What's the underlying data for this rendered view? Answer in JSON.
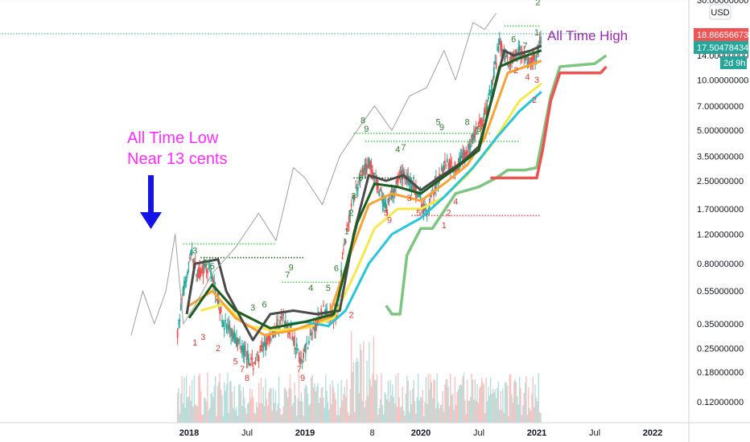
{
  "chart_data": {
    "type": "candlestick",
    "scale": "log",
    "currency": "USD",
    "ylim": [
      0.09,
      30
    ],
    "y_ticks": [
      "30.00000000",
      "14.00000000",
      "10.00000000",
      "7.00000000",
      "5.00000000",
      "3.50000000",
      "2.50000000",
      "1.70000000",
      "1.20000000",
      "0.80000000",
      "0.55000000",
      "0.35000000",
      "0.25000000",
      "0.18000000",
      "0.12000000"
    ],
    "x_ticks": [
      "2018",
      "Jul",
      "2019",
      "8",
      "2020",
      "Jul",
      "2021",
      "Jul",
      "2022"
    ],
    "price_labels": [
      {
        "text": "18.86656673",
        "color": "#f05454"
      },
      {
        "text": "17.50478434",
        "color": "#26a69a"
      },
      {
        "text": "2d 9h",
        "color": "#26a69a"
      }
    ],
    "annotations": [
      {
        "text": "All Time Low",
        "color": "#ff2cff"
      },
      {
        "text": "Near 13 cents",
        "color": "#ff2cff"
      },
      {
        "text": "All Time High",
        "color": "#9c27b0"
      }
    ],
    "key_levels": {
      "all_time_low": 0.13,
      "all_time_high": 18.86656673,
      "last_price": 17.50478434
    },
    "waypoints": [
      {
        "t": 2017.9,
        "v": 0.3
      },
      {
        "t": 2017.95,
        "v": 0.55
      },
      {
        "t": 2018.02,
        "v": 0.95
      },
      {
        "t": 2018.07,
        "v": 0.7
      },
      {
        "t": 2018.18,
        "v": 0.75
      },
      {
        "t": 2018.3,
        "v": 0.35
      },
      {
        "t": 2018.45,
        "v": 0.26
      },
      {
        "t": 2018.55,
        "v": 0.2
      },
      {
        "t": 2018.68,
        "v": 0.28
      },
      {
        "t": 2018.8,
        "v": 0.38
      },
      {
        "t": 2018.9,
        "v": 0.3
      },
      {
        "t": 2018.96,
        "v": 0.21
      },
      {
        "t": 2019.05,
        "v": 0.3
      },
      {
        "t": 2019.15,
        "v": 0.42
      },
      {
        "t": 2019.28,
        "v": 0.4
      },
      {
        "t": 2019.33,
        "v": 0.95
      },
      {
        "t": 2019.4,
        "v": 1.8
      },
      {
        "t": 2019.47,
        "v": 2.6
      },
      {
        "t": 2019.55,
        "v": 3.2
      },
      {
        "t": 2019.62,
        "v": 2.4
      },
      {
        "t": 2019.7,
        "v": 1.7
      },
      {
        "t": 2019.77,
        "v": 2.3
      },
      {
        "t": 2019.85,
        "v": 2.8
      },
      {
        "t": 2019.95,
        "v": 2.2
      },
      {
        "t": 2020.05,
        "v": 1.6
      },
      {
        "t": 2020.12,
        "v": 2.3
      },
      {
        "t": 2020.22,
        "v": 3.3
      },
      {
        "t": 2020.3,
        "v": 3.0
      },
      {
        "t": 2020.4,
        "v": 3.8
      },
      {
        "t": 2020.48,
        "v": 5.0
      },
      {
        "t": 2020.55,
        "v": 6.0
      },
      {
        "t": 2020.62,
        "v": 10.0
      },
      {
        "t": 2020.68,
        "v": 16.5
      },
      {
        "t": 2020.75,
        "v": 13.0
      },
      {
        "t": 2020.85,
        "v": 15.0
      },
      {
        "t": 2020.92,
        "v": 12.5
      },
      {
        "t": 2021.0,
        "v": 14.0
      },
      {
        "t": 2021.04,
        "v": 17.5
      }
    ],
    "series": [
      {
        "name": "",
        "color": "#f7e84a",
        "values": [
          {
            "t": 2018.1,
            "v": 0.42
          },
          {
            "t": 2018.3,
            "v": 0.46
          },
          {
            "t": 2018.5,
            "v": 0.34
          },
          {
            "t": 2018.75,
            "v": 0.32
          },
          {
            "t": 2019.0,
            "v": 0.33
          },
          {
            "t": 2019.25,
            "v": 0.38
          },
          {
            "t": 2019.45,
            "v": 0.75
          },
          {
            "t": 2019.6,
            "v": 1.3
          },
          {
            "t": 2019.8,
            "v": 1.7
          },
          {
            "t": 2020.0,
            "v": 1.7
          },
          {
            "t": 2020.2,
            "v": 2.0
          },
          {
            "t": 2020.4,
            "v": 2.7
          },
          {
            "t": 2020.6,
            "v": 4.0
          },
          {
            "t": 2020.85,
            "v": 7.5
          },
          {
            "t": 2021.04,
            "v": 9.5
          }
        ]
      },
      {
        "name": "",
        "color": "#f7a233",
        "values": [
          {
            "t": 2018.0,
            "v": 0.45
          },
          {
            "t": 2018.2,
            "v": 0.55
          },
          {
            "t": 2018.4,
            "v": 0.38
          },
          {
            "t": 2018.65,
            "v": 0.3
          },
          {
            "t": 2018.9,
            "v": 0.32
          },
          {
            "t": 2019.2,
            "v": 0.38
          },
          {
            "t": 2019.4,
            "v": 0.95
          },
          {
            "t": 2019.55,
            "v": 1.8
          },
          {
            "t": 2019.75,
            "v": 2.1
          },
          {
            "t": 2020.0,
            "v": 1.9
          },
          {
            "t": 2020.2,
            "v": 2.4
          },
          {
            "t": 2020.4,
            "v": 3.1
          },
          {
            "t": 2020.55,
            "v": 4.5
          },
          {
            "t": 2020.75,
            "v": 11.0
          },
          {
            "t": 2021.04,
            "v": 13.0
          }
        ]
      },
      {
        "name": "",
        "color": "#26c6da",
        "values": [
          {
            "t": 2018.85,
            "v": 0.35
          },
          {
            "t": 2019.0,
            "v": 0.36
          },
          {
            "t": 2019.2,
            "v": 0.34
          },
          {
            "t": 2019.35,
            "v": 0.42
          },
          {
            "t": 2019.55,
            "v": 0.8
          },
          {
            "t": 2019.75,
            "v": 1.2
          },
          {
            "t": 2020.0,
            "v": 1.5
          },
          {
            "t": 2020.2,
            "v": 2.0
          },
          {
            "t": 2020.45,
            "v": 3.0
          },
          {
            "t": 2020.65,
            "v": 4.5
          },
          {
            "t": 2020.85,
            "v": 6.5
          },
          {
            "t": 2021.04,
            "v": 8.5
          }
        ]
      },
      {
        "name": "",
        "color": "#4a4a4a",
        "values": [
          {
            "t": 2017.98,
            "v": 0.4
          },
          {
            "t": 2018.05,
            "v": 0.8
          },
          {
            "t": 2018.25,
            "v": 0.85
          },
          {
            "t": 2018.32,
            "v": 0.55
          },
          {
            "t": 2018.55,
            "v": 0.28
          },
          {
            "t": 2018.7,
            "v": 0.4
          },
          {
            "t": 2018.9,
            "v": 0.42
          },
          {
            "t": 2019.1,
            "v": 0.4
          },
          {
            "t": 2019.3,
            "v": 0.42
          },
          {
            "t": 2019.42,
            "v": 1.2
          },
          {
            "t": 2019.55,
            "v": 2.7
          },
          {
            "t": 2019.7,
            "v": 2.5
          },
          {
            "t": 2019.85,
            "v": 2.7
          },
          {
            "t": 2020.0,
            "v": 2.2
          },
          {
            "t": 2020.15,
            "v": 2.6
          },
          {
            "t": 2020.35,
            "v": 3.2
          },
          {
            "t": 2020.5,
            "v": 4.0
          },
          {
            "t": 2020.62,
            "v": 8.0
          },
          {
            "t": 2020.72,
            "v": 15.0
          },
          {
            "t": 2020.8,
            "v": 14.0
          },
          {
            "t": 2020.95,
            "v": 15.0
          },
          {
            "t": 2021.04,
            "v": 16.0
          }
        ]
      },
      {
        "name": "",
        "color": "#1b5e20",
        "values": [
          {
            "t": 2018.0,
            "v": 0.38
          },
          {
            "t": 2018.2,
            "v": 0.6
          },
          {
            "t": 2018.4,
            "v": 0.42
          },
          {
            "t": 2018.7,
            "v": 0.33
          },
          {
            "t": 2019.0,
            "v": 0.36
          },
          {
            "t": 2019.25,
            "v": 0.4
          },
          {
            "t": 2019.45,
            "v": 1.4
          },
          {
            "t": 2019.6,
            "v": 2.4
          },
          {
            "t": 2019.8,
            "v": 2.3
          },
          {
            "t": 2020.0,
            "v": 2.1
          },
          {
            "t": 2020.25,
            "v": 2.8
          },
          {
            "t": 2020.5,
            "v": 3.8
          },
          {
            "t": 2020.68,
            "v": 12.0
          },
          {
            "t": 2020.85,
            "v": 13.5
          },
          {
            "t": 2021.04,
            "v": 15.0
          }
        ]
      },
      {
        "name": "",
        "color": "#a0a0a0",
        "values": [
          {
            "t": 2017.5,
            "v": 0.3
          },
          {
            "t": 2017.6,
            "v": 0.55
          },
          {
            "t": 2017.7,
            "v": 0.35
          },
          {
            "t": 2017.8,
            "v": 0.55
          },
          {
            "t": 2017.88,
            "v": 1.2
          },
          {
            "t": 2017.95,
            "v": 0.35
          },
          {
            "t": 2018.05,
            "v": 0.45
          },
          {
            "t": 2018.2,
            "v": 0.7
          },
          {
            "t": 2018.4,
            "v": 1.0
          },
          {
            "t": 2018.6,
            "v": 1.6
          },
          {
            "t": 2018.75,
            "v": 1.1
          },
          {
            "t": 2018.9,
            "v": 3.0
          },
          {
            "t": 2019.0,
            "v": 2.6
          },
          {
            "t": 2019.15,
            "v": 1.8
          },
          {
            "t": 2019.3,
            "v": 3.5
          },
          {
            "t": 2019.45,
            "v": 5.0
          },
          {
            "t": 2019.6,
            "v": 7.0
          },
          {
            "t": 2019.75,
            "v": 5.0
          },
          {
            "t": 2019.9,
            "v": 8.0
          },
          {
            "t": 2020.05,
            "v": 9.0
          },
          {
            "t": 2020.2,
            "v": 15.0
          },
          {
            "t": 2020.3,
            "v": 10.0
          },
          {
            "t": 2020.45,
            "v": 22.0
          },
          {
            "t": 2020.55,
            "v": 20.0
          },
          {
            "t": 2020.65,
            "v": 25.0
          }
        ]
      },
      {
        "name": "",
        "color": "#66bb6a",
        "values": [
          {
            "t": 2019.7,
            "v": 0.45
          },
          {
            "t": 2019.75,
            "v": 0.4
          },
          {
            "t": 2019.82,
            "v": 0.4
          },
          {
            "t": 2019.88,
            "v": 0.9
          },
          {
            "t": 2020.0,
            "v": 1.3
          },
          {
            "t": 2020.1,
            "v": 1.3
          },
          {
            "t": 2020.3,
            "v": 2.1
          },
          {
            "t": 2020.5,
            "v": 2.3
          },
          {
            "t": 2020.65,
            "v": 2.6
          },
          {
            "t": 2020.75,
            "v": 2.9
          },
          {
            "t": 2020.9,
            "v": 2.9
          },
          {
            "t": 2021.0,
            "v": 3.0
          },
          {
            "t": 2021.05,
            "v": 4.5
          },
          {
            "t": 2021.12,
            "v": 8.0
          },
          {
            "t": 2021.2,
            "v": 12.0
          },
          {
            "t": 2021.5,
            "v": 12.5
          },
          {
            "t": 2021.6,
            "v": 14.0
          }
        ]
      },
      {
        "name": "",
        "color": "#ef5350",
        "values": [
          {
            "t": 2020.6,
            "v": 2.6
          },
          {
            "t": 2021.0,
            "v": 2.6
          },
          {
            "t": 2021.05,
            "v": 3.8
          },
          {
            "t": 2021.12,
            "v": 7.5
          },
          {
            "t": 2021.2,
            "v": 11.0
          },
          {
            "t": 2021.55,
            "v": 11.0
          },
          {
            "t": 2021.6,
            "v": 12.0
          }
        ]
      }
    ],
    "dotted_levels": [
      {
        "v": 1.05,
        "t0": 2017.95,
        "t1": 2018.75,
        "color": "#43d14a"
      },
      {
        "v": 0.87,
        "t0": 2018.1,
        "t1": 2019.0,
        "color": "#1b5e20"
      },
      {
        "v": 0.62,
        "t0": 2018.8,
        "t1": 2019.35,
        "color": "#43d14a"
      },
      {
        "v": 4.8,
        "t0": 2019.42,
        "t1": 2020.6,
        "color": "#43d14a"
      },
      {
        "v": 4.3,
        "t0": 2019.52,
        "t1": 2020.85,
        "color": "#43d14a"
      },
      {
        "v": 2.6,
        "t0": 2019.42,
        "t1": 2019.95,
        "color": "#1b5e20"
      },
      {
        "v": 1.55,
        "t0": 2019.92,
        "t1": 2021.03,
        "color": "#ef5350"
      },
      {
        "v": 21.0,
        "t0": 2020.72,
        "t1": 2021.03,
        "color": "#43d14a"
      },
      {
        "v": 18.866,
        "t0": 2015.0,
        "t1": 2021.5,
        "color": "#26a69a"
      }
    ],
    "td_labels": [
      {
        "t": 2018.05,
        "v": 0.92,
        "text": "3",
        "c": "g"
      },
      {
        "t": 2018.14,
        "v": 0.78,
        "text": "3",
        "c": "g"
      },
      {
        "t": 2018.2,
        "v": 0.74,
        "text": "5",
        "c": "g"
      },
      {
        "t": 2018.55,
        "v": 0.42,
        "text": "3",
        "c": "g"
      },
      {
        "t": 2018.65,
        "v": 0.44,
        "text": "6",
        "c": "g"
      },
      {
        "t": 2018.85,
        "v": 0.66,
        "text": "7",
        "c": "g"
      },
      {
        "t": 2018.88,
        "v": 0.73,
        "text": "9",
        "c": "g"
      },
      {
        "t": 2019.05,
        "v": 0.55,
        "text": "4",
        "c": "g"
      },
      {
        "t": 2019.2,
        "v": 0.55,
        "text": "5",
        "c": "g"
      },
      {
        "t": 2019.27,
        "v": 0.72,
        "text": "6",
        "c": "g"
      },
      {
        "t": 2019.36,
        "v": 1.2,
        "text": "1",
        "c": "g"
      },
      {
        "t": 2019.4,
        "v": 1.55,
        "text": "2",
        "c": "g"
      },
      {
        "t": 2019.42,
        "v": 1.95,
        "text": "3",
        "c": "g"
      },
      {
        "t": 2019.48,
        "v": 2.5,
        "text": "6",
        "c": "g"
      },
      {
        "t": 2019.5,
        "v": 5.5,
        "text": "8",
        "c": "g"
      },
      {
        "t": 2019.53,
        "v": 4.9,
        "text": "9",
        "c": "g"
      },
      {
        "t": 2019.8,
        "v": 3.7,
        "text": "4",
        "c": "g"
      },
      {
        "t": 2019.85,
        "v": 3.8,
        "text": "7",
        "c": "g"
      },
      {
        "t": 2020.15,
        "v": 5.4,
        "text": "5",
        "c": "g"
      },
      {
        "t": 2020.18,
        "v": 5.0,
        "text": "9",
        "c": "g"
      },
      {
        "t": 2020.4,
        "v": 5.4,
        "text": "8",
        "c": "g"
      },
      {
        "t": 2020.5,
        "v": 4.9,
        "text": "9",
        "c": "g"
      },
      {
        "t": 2020.8,
        "v": 16.8,
        "text": "6",
        "c": "g"
      },
      {
        "t": 2020.9,
        "v": 15.4,
        "text": "7",
        "c": "g"
      },
      {
        "t": 2020.95,
        "v": 14.0,
        "text": "9",
        "c": "g"
      },
      {
        "t": 2021.0,
        "v": 18.5,
        "text": "1",
        "c": "g"
      },
      {
        "t": 2021.01,
        "v": 28.0,
        "text": "2",
        "c": "g"
      },
      {
        "t": 2018.05,
        "v": 0.26,
        "text": "1",
        "c": "r"
      },
      {
        "t": 2018.12,
        "v": 0.28,
        "text": "3",
        "c": "r"
      },
      {
        "t": 2018.25,
        "v": 0.24,
        "text": "2",
        "c": "r"
      },
      {
        "t": 2018.4,
        "v": 0.2,
        "text": "5",
        "c": "r"
      },
      {
        "t": 2018.46,
        "v": 0.18,
        "text": "7",
        "c": "r"
      },
      {
        "t": 2018.5,
        "v": 0.16,
        "text": "8",
        "c": "r"
      },
      {
        "t": 2018.62,
        "v": 0.24,
        "text": "1",
        "c": "r"
      },
      {
        "t": 2018.95,
        "v": 0.18,
        "text": "7",
        "c": "r"
      },
      {
        "t": 2018.98,
        "v": 0.16,
        "text": "9",
        "c": "r"
      },
      {
        "t": 2019.1,
        "v": 0.34,
        "text": "2",
        "c": "r"
      },
      {
        "t": 2019.4,
        "v": 0.38,
        "text": "2",
        "c": "r"
      },
      {
        "t": 2019.7,
        "v": 1.55,
        "text": "5",
        "c": "r"
      },
      {
        "t": 2019.73,
        "v": 1.4,
        "text": "9",
        "c": "r"
      },
      {
        "t": 2019.9,
        "v": 1.9,
        "text": "3",
        "c": "r"
      },
      {
        "t": 2019.98,
        "v": 1.55,
        "text": "5",
        "c": "r"
      },
      {
        "t": 2020.2,
        "v": 1.3,
        "text": "1",
        "c": "r"
      },
      {
        "t": 2020.24,
        "v": 1.55,
        "text": "2",
        "c": "r"
      },
      {
        "t": 2020.3,
        "v": 1.8,
        "text": "4",
        "c": "r"
      },
      {
        "t": 2020.82,
        "v": 11.0,
        "text": "2",
        "c": "r"
      },
      {
        "t": 2020.92,
        "v": 10.0,
        "text": "4",
        "c": "r"
      },
      {
        "t": 2020.98,
        "v": 7.3,
        "text": "2",
        "c": "r"
      },
      {
        "t": 2021.0,
        "v": 9.6,
        "text": "3",
        "c": "r"
      }
    ]
  }
}
